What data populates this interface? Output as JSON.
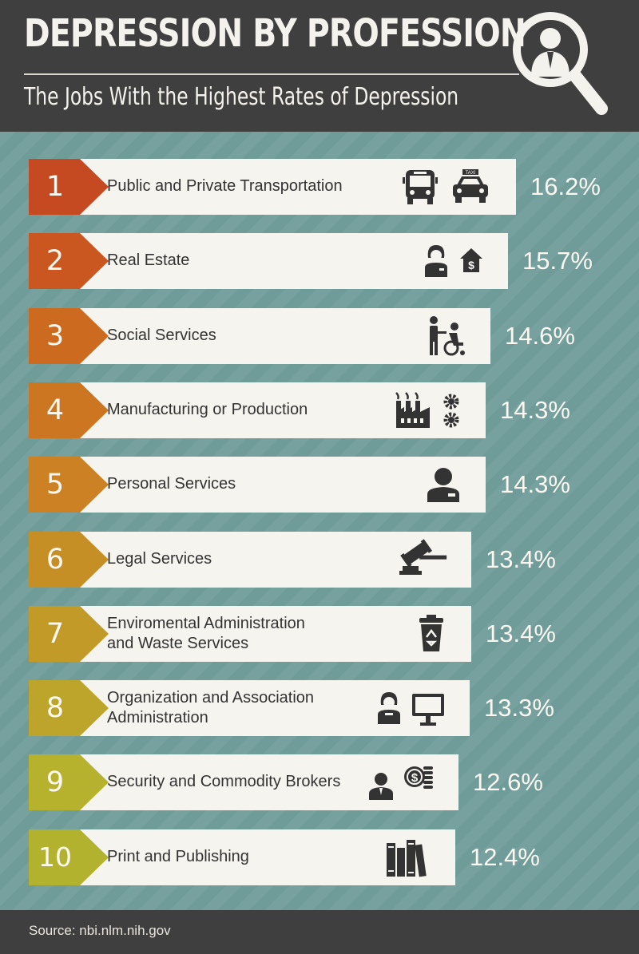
{
  "header": {
    "title": "DEPRESSION BY PROFESSION",
    "subtitle": "The Jobs With the Highest Rates of Depression"
  },
  "chart_data": {
    "type": "bar",
    "orientation": "horizontal",
    "title": "DEPRESSION BY PROFESSION",
    "subtitle": "The Jobs With the Highest Rates of Depression",
    "categories": [
      "Public and Private Transportation",
      "Real Estate",
      "Social Services",
      "Manufacturing or Production",
      "Personal Services",
      "Legal Services",
      "Enviromental Administration and Waste Services",
      "Organization and Association Administration",
      "Security and Commodity Brokers",
      "Print and Publishing"
    ],
    "values": [
      16.2,
      15.7,
      14.6,
      14.3,
      14.3,
      13.4,
      13.4,
      13.3,
      12.6,
      12.4
    ],
    "unit": "%",
    "grid": false,
    "legend": "none"
  },
  "rows": [
    {
      "rank": "1",
      "lines": [
        "Public and Private Transportation"
      ],
      "value_label": "16.2%",
      "color": "#c54a22",
      "icons": [
        "bus-icon",
        "taxi-icon"
      ],
      "taxi_text": "TAXI"
    },
    {
      "rank": "2",
      "lines": [
        "Real Estate"
      ],
      "value_label": "15.7%",
      "color": "#c9571f",
      "icons": [
        "realtor-icon",
        "house-dollar-icon"
      ]
    },
    {
      "rank": "3",
      "lines": [
        "Social Services"
      ],
      "value_label": "14.6%",
      "color": "#cc6a1f",
      "icons": [
        "caregiver-wheelchair-icon"
      ]
    },
    {
      "rank": "4",
      "lines": [
        "Manufacturing or Production"
      ],
      "value_label": "14.3%",
      "color": "#cc7622",
      "icons": [
        "factory-icon",
        "gears-icon"
      ]
    },
    {
      "rank": "5",
      "lines": [
        "Personal Services"
      ],
      "value_label": "14.3%",
      "color": "#cc8124",
      "icons": [
        "attendant-icon"
      ]
    },
    {
      "rank": "6",
      "lines": [
        "Legal Services"
      ],
      "value_label": "13.4%",
      "color": "#c58f26",
      "icons": [
        "gavel-icon"
      ]
    },
    {
      "rank": "7",
      "lines": [
        "Enviromental Administration",
        "and Waste Services"
      ],
      "value_label": "13.4%",
      "color": "#c29a28",
      "icons": [
        "recycle-bin-icon"
      ]
    },
    {
      "rank": "8",
      "lines": [
        "Organization and Association",
        "Administration"
      ],
      "value_label": "13.3%",
      "color": "#bda52b",
      "icons": [
        "office-worker-icon",
        "monitor-icon"
      ]
    },
    {
      "rank": "9",
      "lines": [
        "Security and Commodity Brokers"
      ],
      "value_label": "12.6%",
      "color": "#b7b22d",
      "icons": [
        "broker-icon",
        "coins-icon"
      ]
    },
    {
      "rank": "10",
      "lines": [
        "Print and Publishing"
      ],
      "value_label": "12.4%",
      "color": "#b3b22f",
      "icons": [
        "books-icon"
      ]
    }
  ],
  "footer": {
    "source": "Source: nbi.nlm.nih.gov"
  },
  "colors": {
    "header_bg": "#3f3f3f",
    "main_bg": "#6f9c99",
    "bar_bg": "#f6f4ef",
    "text_light": "#fbf8f1"
  }
}
